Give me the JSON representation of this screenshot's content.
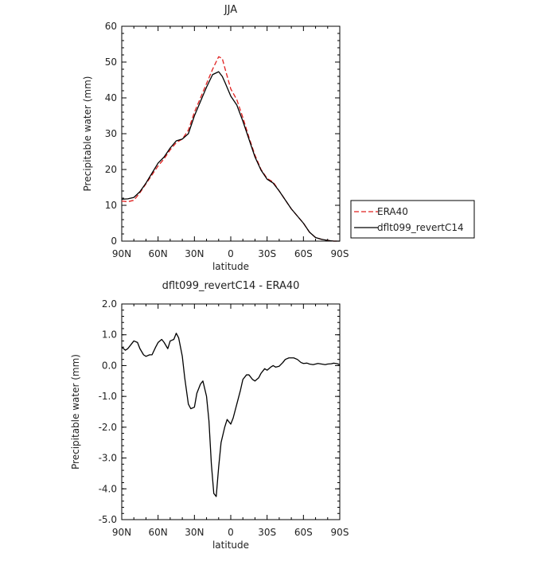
{
  "chart_data": [
    {
      "type": "line",
      "title": "JJA",
      "xlabel": "latitude",
      "ylabel": "Precipitable water (mm)",
      "ylim": [
        0,
        60
      ],
      "yticks": [
        0,
        10,
        20,
        30,
        40,
        50,
        60
      ],
      "xlim": [
        90,
        -90
      ],
      "xticks": [
        90,
        60,
        30,
        0,
        -30,
        -60,
        -90
      ],
      "xtick_labels": [
        "90N",
        "60N",
        "30N",
        "0",
        "30S",
        "60S",
        "90S"
      ],
      "legend": {
        "placement": "right"
      },
      "series": [
        {
          "name": "ERA40",
          "color": "#e0201f",
          "dash": "dashed",
          "x": [
            90,
            85,
            80,
            75,
            70,
            65,
            60,
            55,
            50,
            45,
            40,
            35,
            30,
            25,
            20,
            15,
            10,
            7,
            5,
            0,
            -5,
            -10,
            -15,
            -20,
            -25,
            -30,
            -35,
            -40,
            -45,
            -50,
            -55,
            -60,
            -65,
            -70,
            -75,
            -80,
            -85,
            -90
          ],
          "values": [
            11.2,
            11.0,
            11.4,
            13.5,
            16.0,
            18.5,
            21.0,
            23.0,
            25.5,
            27.5,
            28.5,
            31.0,
            36.0,
            40.0,
            44.0,
            48.0,
            51.5,
            51.0,
            48.5,
            42.5,
            39.5,
            34.5,
            29.0,
            24.0,
            20.0,
            17.5,
            16.5,
            14.0,
            11.5,
            9.0,
            7.0,
            5.0,
            2.5,
            1.0,
            0.5,
            0.2,
            0.0,
            0.0
          ]
        },
        {
          "name": "dflt099_revertC14",
          "color": "#000000",
          "dash": "solid",
          "x": [
            90,
            85,
            80,
            75,
            70,
            65,
            60,
            55,
            50,
            45,
            40,
            35,
            30,
            25,
            20,
            15,
            10,
            7,
            5,
            0,
            -5,
            -10,
            -15,
            -20,
            -25,
            -30,
            -35,
            -40,
            -45,
            -50,
            -55,
            -60,
            -65,
            -70,
            -75,
            -80,
            -85,
            -90
          ],
          "values": [
            11.7,
            11.8,
            12.2,
            13.8,
            16.2,
            19.0,
            21.8,
            23.5,
            26.0,
            28.0,
            28.5,
            30.0,
            35.0,
            39.0,
            43.0,
            46.5,
            47.3,
            46.0,
            44.5,
            40.5,
            38.0,
            33.5,
            28.5,
            23.5,
            19.8,
            17.3,
            16.2,
            14.0,
            11.5,
            9.0,
            7.0,
            5.0,
            2.5,
            1.0,
            0.5,
            0.2,
            0.0,
            0.0
          ]
        }
      ]
    },
    {
      "type": "line",
      "title": "dflt099_revertC14 - ERA40",
      "xlabel": "latitude",
      "ylabel": "Precipitable water (mm)",
      "ylim": [
        -5,
        2
      ],
      "yticks": [
        -5,
        -4,
        -3,
        -2,
        -1,
        0,
        1,
        2
      ],
      "ytick_labels": [
        "-5.0",
        "-4.0",
        "-3.0",
        "-2.0",
        "-1.0",
        "0.0",
        "1.0",
        "2.0"
      ],
      "xlim": [
        90,
        -90
      ],
      "xticks": [
        90,
        60,
        30,
        0,
        -30,
        -60,
        -90
      ],
      "xtick_labels": [
        "90N",
        "60N",
        "30N",
        "0",
        "30S",
        "60S",
        "90S"
      ],
      "series": [
        {
          "color": "#000000",
          "x": [
            90,
            87,
            85,
            82,
            80,
            77,
            75,
            72,
            70,
            67,
            65,
            62,
            60,
            57,
            55,
            52,
            50,
            47,
            45,
            43,
            40,
            38,
            35,
            33,
            30,
            28,
            25,
            23,
            20,
            18,
            16,
            14,
            12,
            10,
            8,
            5,
            3,
            0,
            -2,
            -5,
            -8,
            -10,
            -13,
            -15,
            -18,
            -20,
            -23,
            -25,
            -28,
            -30,
            -33,
            -35,
            -37,
            -40,
            -43,
            -45,
            -48,
            -50,
            -52,
            -55,
            -58,
            -60,
            -63,
            -65,
            -68,
            -70,
            -72,
            -75,
            -78,
            -80,
            -83,
            -85,
            -88,
            -90
          ],
          "values": [
            0.6,
            0.5,
            0.55,
            0.7,
            0.8,
            0.75,
            0.55,
            0.35,
            0.3,
            0.35,
            0.35,
            0.6,
            0.75,
            0.85,
            0.75,
            0.55,
            0.8,
            0.85,
            1.05,
            0.9,
            0.3,
            -0.4,
            -1.25,
            -1.4,
            -1.35,
            -0.9,
            -0.6,
            -0.5,
            -1.0,
            -1.8,
            -3.2,
            -4.15,
            -4.25,
            -3.3,
            -2.5,
            -2.0,
            -1.75,
            -1.9,
            -1.7,
            -1.25,
            -0.8,
            -0.45,
            -0.3,
            -0.3,
            -0.45,
            -0.5,
            -0.4,
            -0.25,
            -0.1,
            -0.15,
            -0.05,
            0.0,
            -0.05,
            -0.02,
            0.1,
            0.2,
            0.25,
            0.25,
            0.25,
            0.2,
            0.1,
            0.07,
            0.08,
            0.05,
            0.03,
            0.05,
            0.07,
            0.05,
            0.03,
            0.05,
            0.06,
            0.08,
            0.06,
            0.03
          ]
        }
      ]
    }
  ]
}
